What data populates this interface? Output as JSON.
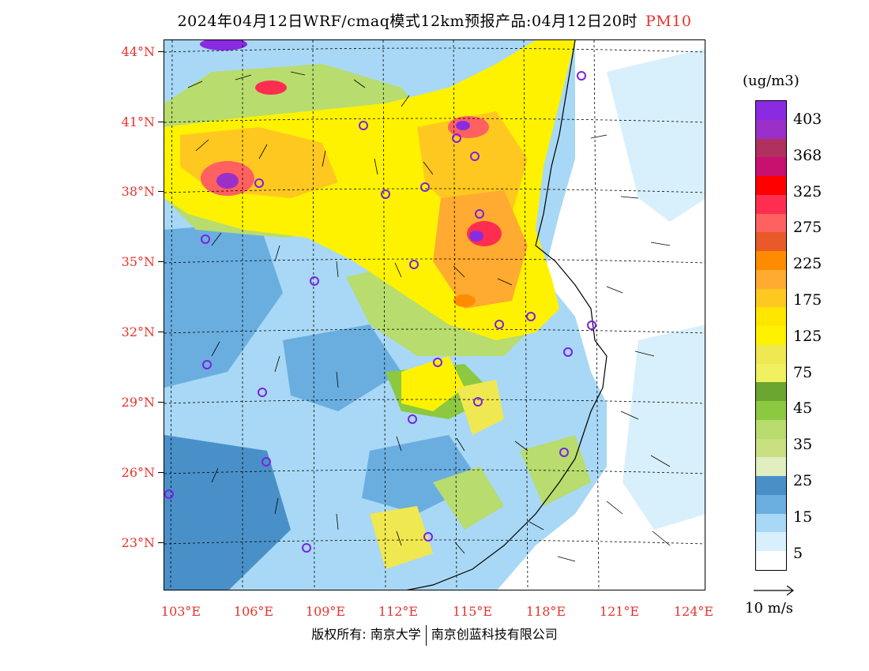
{
  "title": {
    "main": "2024年04月12日WRF/cmaq模式12km预报产品:04月12日20时",
    "pollutant": "PM10"
  },
  "axes": {
    "lat_labels": [
      "44°N",
      "41°N",
      "38°N",
      "35°N",
      "32°N",
      "29°N",
      "26°N",
      "23°N"
    ],
    "lon_labels": [
      "103°E",
      "106°E",
      "109°E",
      "112°E",
      "115°E",
      "118°E",
      "121°E",
      "124°E"
    ]
  },
  "legend": {
    "units": "(ug/m3)",
    "labels": [
      "403",
      "368",
      "325",
      "275",
      "225",
      "175",
      "125",
      "75",
      "45",
      "35",
      "25",
      "15",
      "5"
    ],
    "colors": [
      "#8a2be2",
      "#9b30c8",
      "#b03060",
      "#c8106e",
      "#ff0000",
      "#ff2e50",
      "#ff6060",
      "#e85a2a",
      "#ff8c00",
      "#ffaa30",
      "#ffc820",
      "#ffe600",
      "#fff200",
      "#f0e850",
      "#f0f060",
      "#6aa630",
      "#8cc840",
      "#b8dc6e",
      "#c8e080",
      "#e0eec0",
      "#4a90c8",
      "#6aaee0",
      "#a8d8f5",
      "#d8f0fb",
      "#ffffff"
    ],
    "wind_scale_label": "10 m/s"
  },
  "copyright": {
    "left": "版权所有: 南京大学",
    "right": "南京创蓝科技有限公司"
  }
}
